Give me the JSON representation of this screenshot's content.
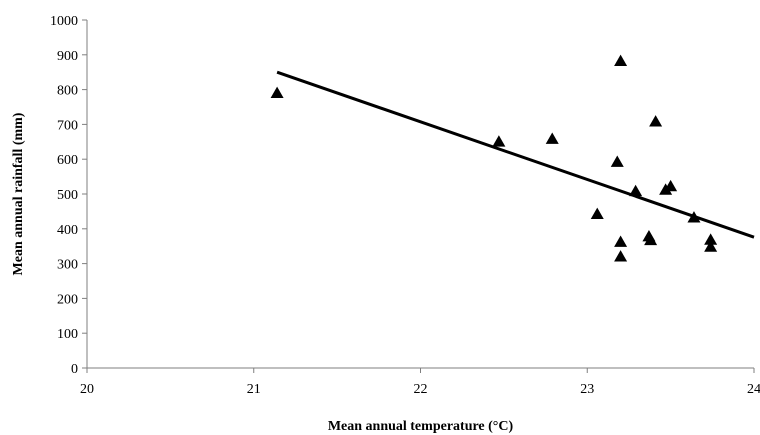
{
  "chart_data": {
    "type": "scatter",
    "title": "",
    "xlabel": "Mean annual temperature (°C)",
    "ylabel": "Mean annual rainfall (mm)",
    "xlim": [
      20,
      24
    ],
    "ylim": [
      0,
      1000
    ],
    "x_ticks": [
      "20",
      "21",
      "22",
      "23",
      "24"
    ],
    "y_ticks": [
      "0",
      "100",
      "200",
      "300",
      "400",
      "500",
      "600",
      "700",
      "800",
      "900",
      "1000"
    ],
    "grid": false,
    "legend": "none",
    "marker": "triangle",
    "marker_color": "#000000",
    "series": [
      {
        "points": [
          {
            "x": 21.14,
            "y": 790
          },
          {
            "x": 22.47,
            "y": 650
          },
          {
            "x": 22.79,
            "y": 658
          },
          {
            "x": 23.06,
            "y": 442
          },
          {
            "x": 23.18,
            "y": 592
          },
          {
            "x": 23.2,
            "y": 882
          },
          {
            "x": 23.2,
            "y": 362
          },
          {
            "x": 23.2,
            "y": 320
          },
          {
            "x": 23.29,
            "y": 508
          },
          {
            "x": 23.37,
            "y": 378
          },
          {
            "x": 23.38,
            "y": 367
          },
          {
            "x": 23.41,
            "y": 708
          },
          {
            "x": 23.47,
            "y": 512
          },
          {
            "x": 23.5,
            "y": 522
          },
          {
            "x": 23.64,
            "y": 432
          },
          {
            "x": 23.74,
            "y": 368
          },
          {
            "x": 23.74,
            "y": 348
          }
        ]
      }
    ],
    "trendline": {
      "type": "linear",
      "color": "#000000",
      "from": {
        "x": 21.14,
        "y": 850
      },
      "to": {
        "x": 24.0,
        "y": 376
      }
    }
  }
}
